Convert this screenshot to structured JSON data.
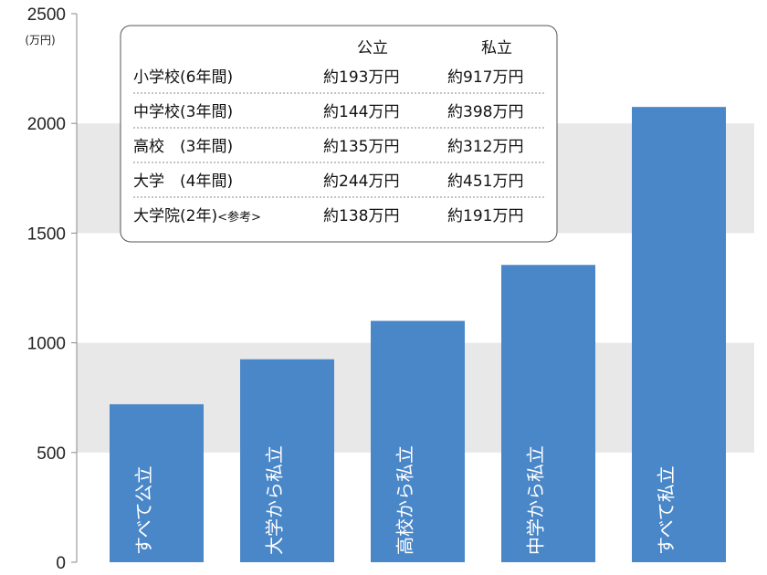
{
  "chart_data": {
    "type": "bar",
    "ylabel": "(万円)",
    "ylim": [
      0,
      2500
    ],
    "yticks": [
      0,
      500,
      1000,
      1500,
      2000,
      2500
    ],
    "grid": "alternating horizontal bands",
    "categories": [
      "すべて公立",
      "大学から私立",
      "高校から私立",
      "中学から私立",
      "すべて私立"
    ],
    "values": [
      720,
      925,
      1100,
      1355,
      2075
    ],
    "colors": {
      "bar": "#4a87c8",
      "band": "#e8e8e8",
      "axis": "#888888"
    }
  },
  "inset_table": {
    "headers": [
      "",
      "公立",
      "私立"
    ],
    "rows": [
      {
        "label": "小学校(6年間)",
        "note": "",
        "public": "約193万円",
        "private": "約917万円"
      },
      {
        "label": "中学校(3年間)",
        "note": "",
        "public": "約144万円",
        "private": "約398万円"
      },
      {
        "label": "高校　(3年間)",
        "note": "",
        "public": "約135万円",
        "private": "約312万円"
      },
      {
        "label": "大学　(4年間)",
        "note": "",
        "public": "約244万円",
        "private": "約451万円"
      },
      {
        "label": "大学院(2年)",
        "note": "<参考>",
        "public": "約138万円",
        "private": "約191万円"
      }
    ]
  }
}
